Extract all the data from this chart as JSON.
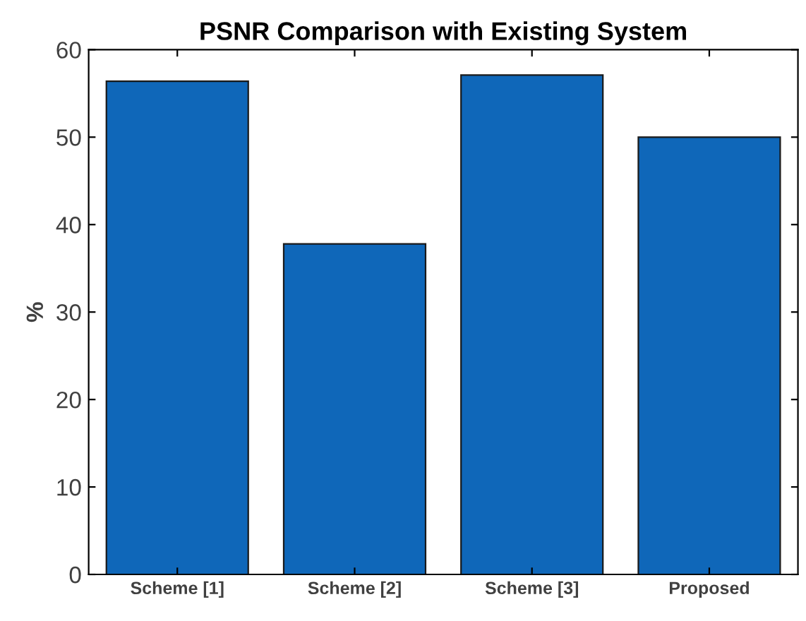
{
  "chart_data": {
    "type": "bar",
    "title": "PSNR Comparison with Existing System",
    "ylabel": "%",
    "categories": [
      "Scheme [1]",
      "Scheme [2]",
      "Scheme [3]",
      "Proposed"
    ],
    "values": [
      56.4,
      37.8,
      57.1,
      50.0
    ],
    "color": "#0f67b9",
    "ylim": [
      0,
      60
    ],
    "yticks": [
      0,
      10,
      20,
      30,
      40,
      50,
      60
    ],
    "grid": false
  }
}
